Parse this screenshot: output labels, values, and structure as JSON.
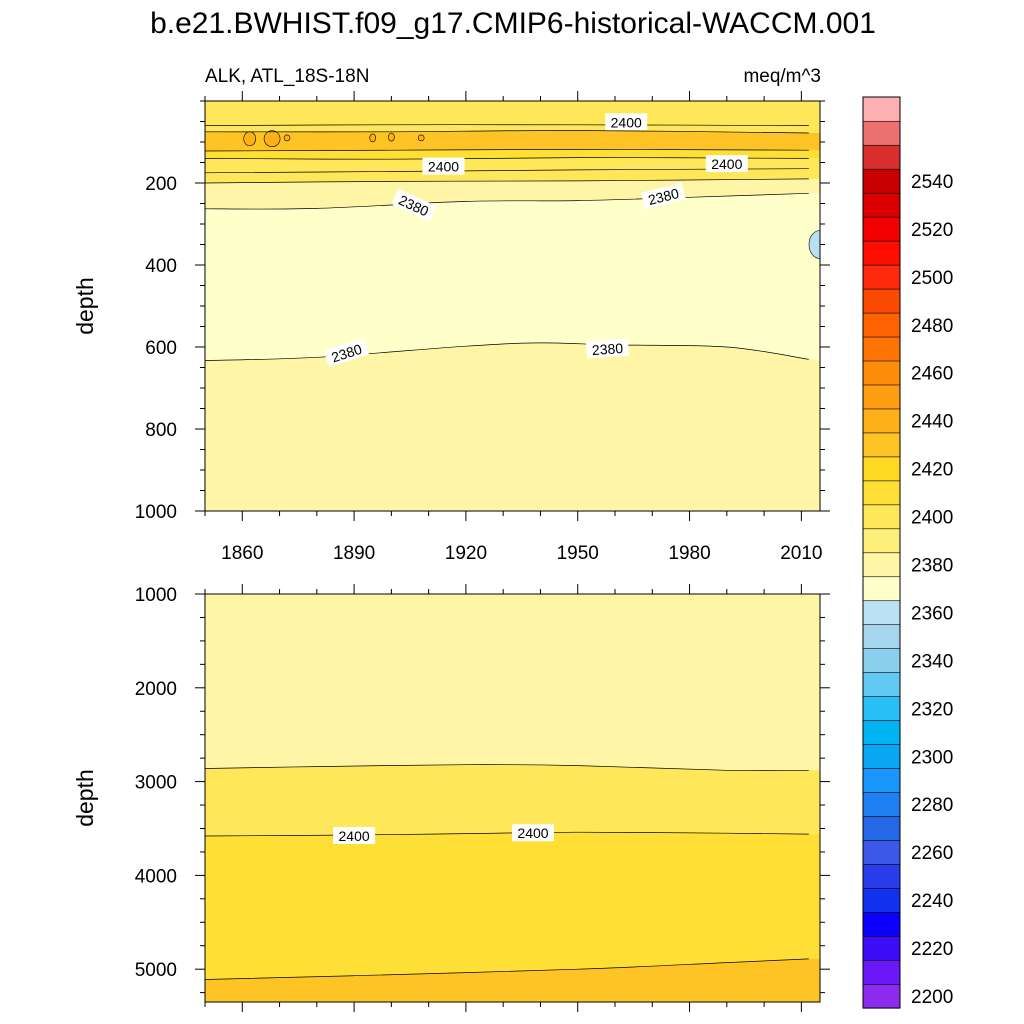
{
  "chart_data": {
    "type": "contour",
    "title": "b.e21.BWHIST.f09_g17.CMIP6-historical-WACCM.001",
    "left_label": "ALK, ATL_18S-18N",
    "right_label": "meq/m^3",
    "xlabel": "",
    "ylabel": "depth",
    "x_range": [
      1850,
      2015
    ],
    "x_ticks": [
      1860,
      1890,
      1920,
      1950,
      1980,
      2010
    ],
    "panels": [
      {
        "name": "upper",
        "ylim": [
          0,
          1000
        ],
        "y_ticks": [
          200,
          400,
          600,
          800,
          1000
        ],
        "y_tick_labels": [
          "200",
          "400",
          "600",
          "800",
          "1000"
        ],
        "show_x_tick_labels": true,
        "contour_lines": [
          {
            "level": 2400,
            "depths": [
              [
                1850,
                60
              ],
              [
                1900,
                58
              ],
              [
                1950,
                58
              ],
              [
                2012,
                60
              ]
            ]
          },
          {
            "level": 2410,
            "depths": [
              [
                1850,
                75
              ],
              [
                1900,
                75
              ],
              [
                1950,
                72
              ],
              [
                2012,
                78
              ]
            ]
          },
          {
            "level": 2410,
            "depths": [
              [
                1850,
                122
              ],
              [
                1900,
                120
              ],
              [
                1950,
                118
              ],
              [
                2012,
                120
              ]
            ]
          },
          {
            "level": 2400,
            "depths": [
              [
                1850,
                140
              ],
              [
                1900,
                142
              ],
              [
                1950,
                138
              ],
              [
                2012,
                140
              ]
            ]
          },
          {
            "level": 2400,
            "depths": [
              [
                1850,
                175
              ],
              [
                1900,
                172
              ],
              [
                1950,
                168
              ],
              [
                2012,
                165
              ]
            ]
          },
          {
            "level": 2390,
            "depths": [
              [
                1850,
                200
              ],
              [
                1900,
                196
              ],
              [
                1950,
                195
              ],
              [
                2012,
                190
              ]
            ]
          },
          {
            "level": 2380,
            "depths": [
              [
                1850,
                263
              ],
              [
                1880,
                262
              ],
              [
                1920,
                245
              ],
              [
                1950,
                243
              ],
              [
                1980,
                235
              ],
              [
                2012,
                225
              ]
            ]
          },
          {
            "level": 2380,
            "depths": [
              [
                1850,
                633
              ],
              [
                1880,
                625
              ],
              [
                1920,
                598
              ],
              [
                1940,
                590
              ],
              [
                1960,
                595
              ],
              [
                1990,
                600
              ],
              [
                2012,
                630
              ]
            ]
          }
        ],
        "contour_labels": [
          {
            "text": "2400",
            "x": 1963,
            "depth": 52,
            "angle": 0
          },
          {
            "text": "2400",
            "x": 1914,
            "depth": 160,
            "angle": 0
          },
          {
            "text": "2400",
            "x": 1990,
            "depth": 154,
            "angle": 0
          },
          {
            "text": "2380",
            "x": 1906,
            "depth": 255,
            "angle": 25
          },
          {
            "text": "2380",
            "x": 1973,
            "depth": 233,
            "angle": -14
          },
          {
            "text": "2380",
            "x": 1888,
            "depth": 615,
            "angle": -18
          },
          {
            "text": "2380",
            "x": 1958,
            "depth": 605,
            "angle": -4
          }
        ],
        "color_bands": [
          {
            "level": 2410,
            "color": "#FEC425"
          },
          {
            "level": 2400,
            "color": "#FEDF35"
          },
          {
            "level": 2390,
            "color": "#FEE85A"
          },
          {
            "level": 2380,
            "color": "#FEF6A6"
          },
          {
            "level": 2375,
            "color": "#FEFFC9"
          },
          {
            "level": 2360,
            "color": "#B9E0F2"
          }
        ]
      },
      {
        "name": "lower",
        "ylim": [
          1000,
          5350
        ],
        "y_ticks": [
          1000,
          2000,
          3000,
          4000,
          5000
        ],
        "y_tick_labels": [
          "1000",
          "2000",
          "3000",
          "4000",
          "5000"
        ],
        "show_x_tick_labels": false,
        "contour_lines": [
          {
            "level": 2390,
            "depths": [
              [
                1850,
                2860
              ],
              [
                1880,
                2840
              ],
              [
                1920,
                2820
              ],
              [
                1950,
                2830
              ],
              [
                1990,
                2880
              ],
              [
                2012,
                2880
              ]
            ]
          },
          {
            "level": 2400,
            "depths": [
              [
                1850,
                3580
              ],
              [
                1890,
                3570
              ],
              [
                1920,
                3555
              ],
              [
                1950,
                3540
              ],
              [
                1990,
                3550
              ],
              [
                2012,
                3560
              ]
            ]
          },
          {
            "level": 2410,
            "depths": [
              [
                1850,
                5110
              ],
              [
                1890,
                5070
              ],
              [
                1950,
                5000
              ],
              [
                1990,
                4930
              ],
              [
                2012,
                4890
              ]
            ]
          }
        ],
        "contour_labels": [
          {
            "text": "2400",
            "x": 1890,
            "depth": 3580,
            "angle": 0
          },
          {
            "text": "2400",
            "x": 1938,
            "depth": 3550,
            "angle": 0
          }
        ],
        "color_bands": [
          {
            "level": 2380,
            "color": "#FEF6A6"
          },
          {
            "level": 2390,
            "color": "#FEE85A"
          },
          {
            "level": 2400,
            "color": "#FEDF35"
          },
          {
            "level": 2410,
            "color": "#FEC425"
          }
        ]
      }
    ],
    "colorbar": {
      "orientation": "vertical",
      "min": 2195,
      "max": 2560,
      "step": 10,
      "labels": [
        2200,
        2220,
        2240,
        2260,
        2280,
        2300,
        2320,
        2340,
        2360,
        2380,
        2400,
        2420,
        2440,
        2460,
        2480,
        2500,
        2520,
        2540
      ],
      "colors": [
        "#8B2BEF",
        "#6A18F8",
        "#3D0DF8",
        "#0C00FB",
        "#1232F0",
        "#2A3CEC",
        "#3B59E8",
        "#2468E8",
        "#1E7FF0",
        "#1896FB",
        "#0AA6F4",
        "#00B3F3",
        "#27C1F8",
        "#62C9F5",
        "#8CCEEE",
        "#A6D6EE",
        "#BBE2F3",
        "#FEFFC9",
        "#FEF6A6",
        "#FEEE7A",
        "#FEE85A",
        "#FEDF35",
        "#FED821",
        "#FEC425",
        "#FEB018",
        "#FE9E13",
        "#FE8C0B",
        "#FD7405",
        "#FF6200",
        "#F94A00",
        "#FF2A0B",
        "#FF0E00",
        "#F10000",
        "#DA0000",
        "#C90000",
        "#D92E2E",
        "#EC7070",
        "#FDB0B2"
      ]
    }
  }
}
